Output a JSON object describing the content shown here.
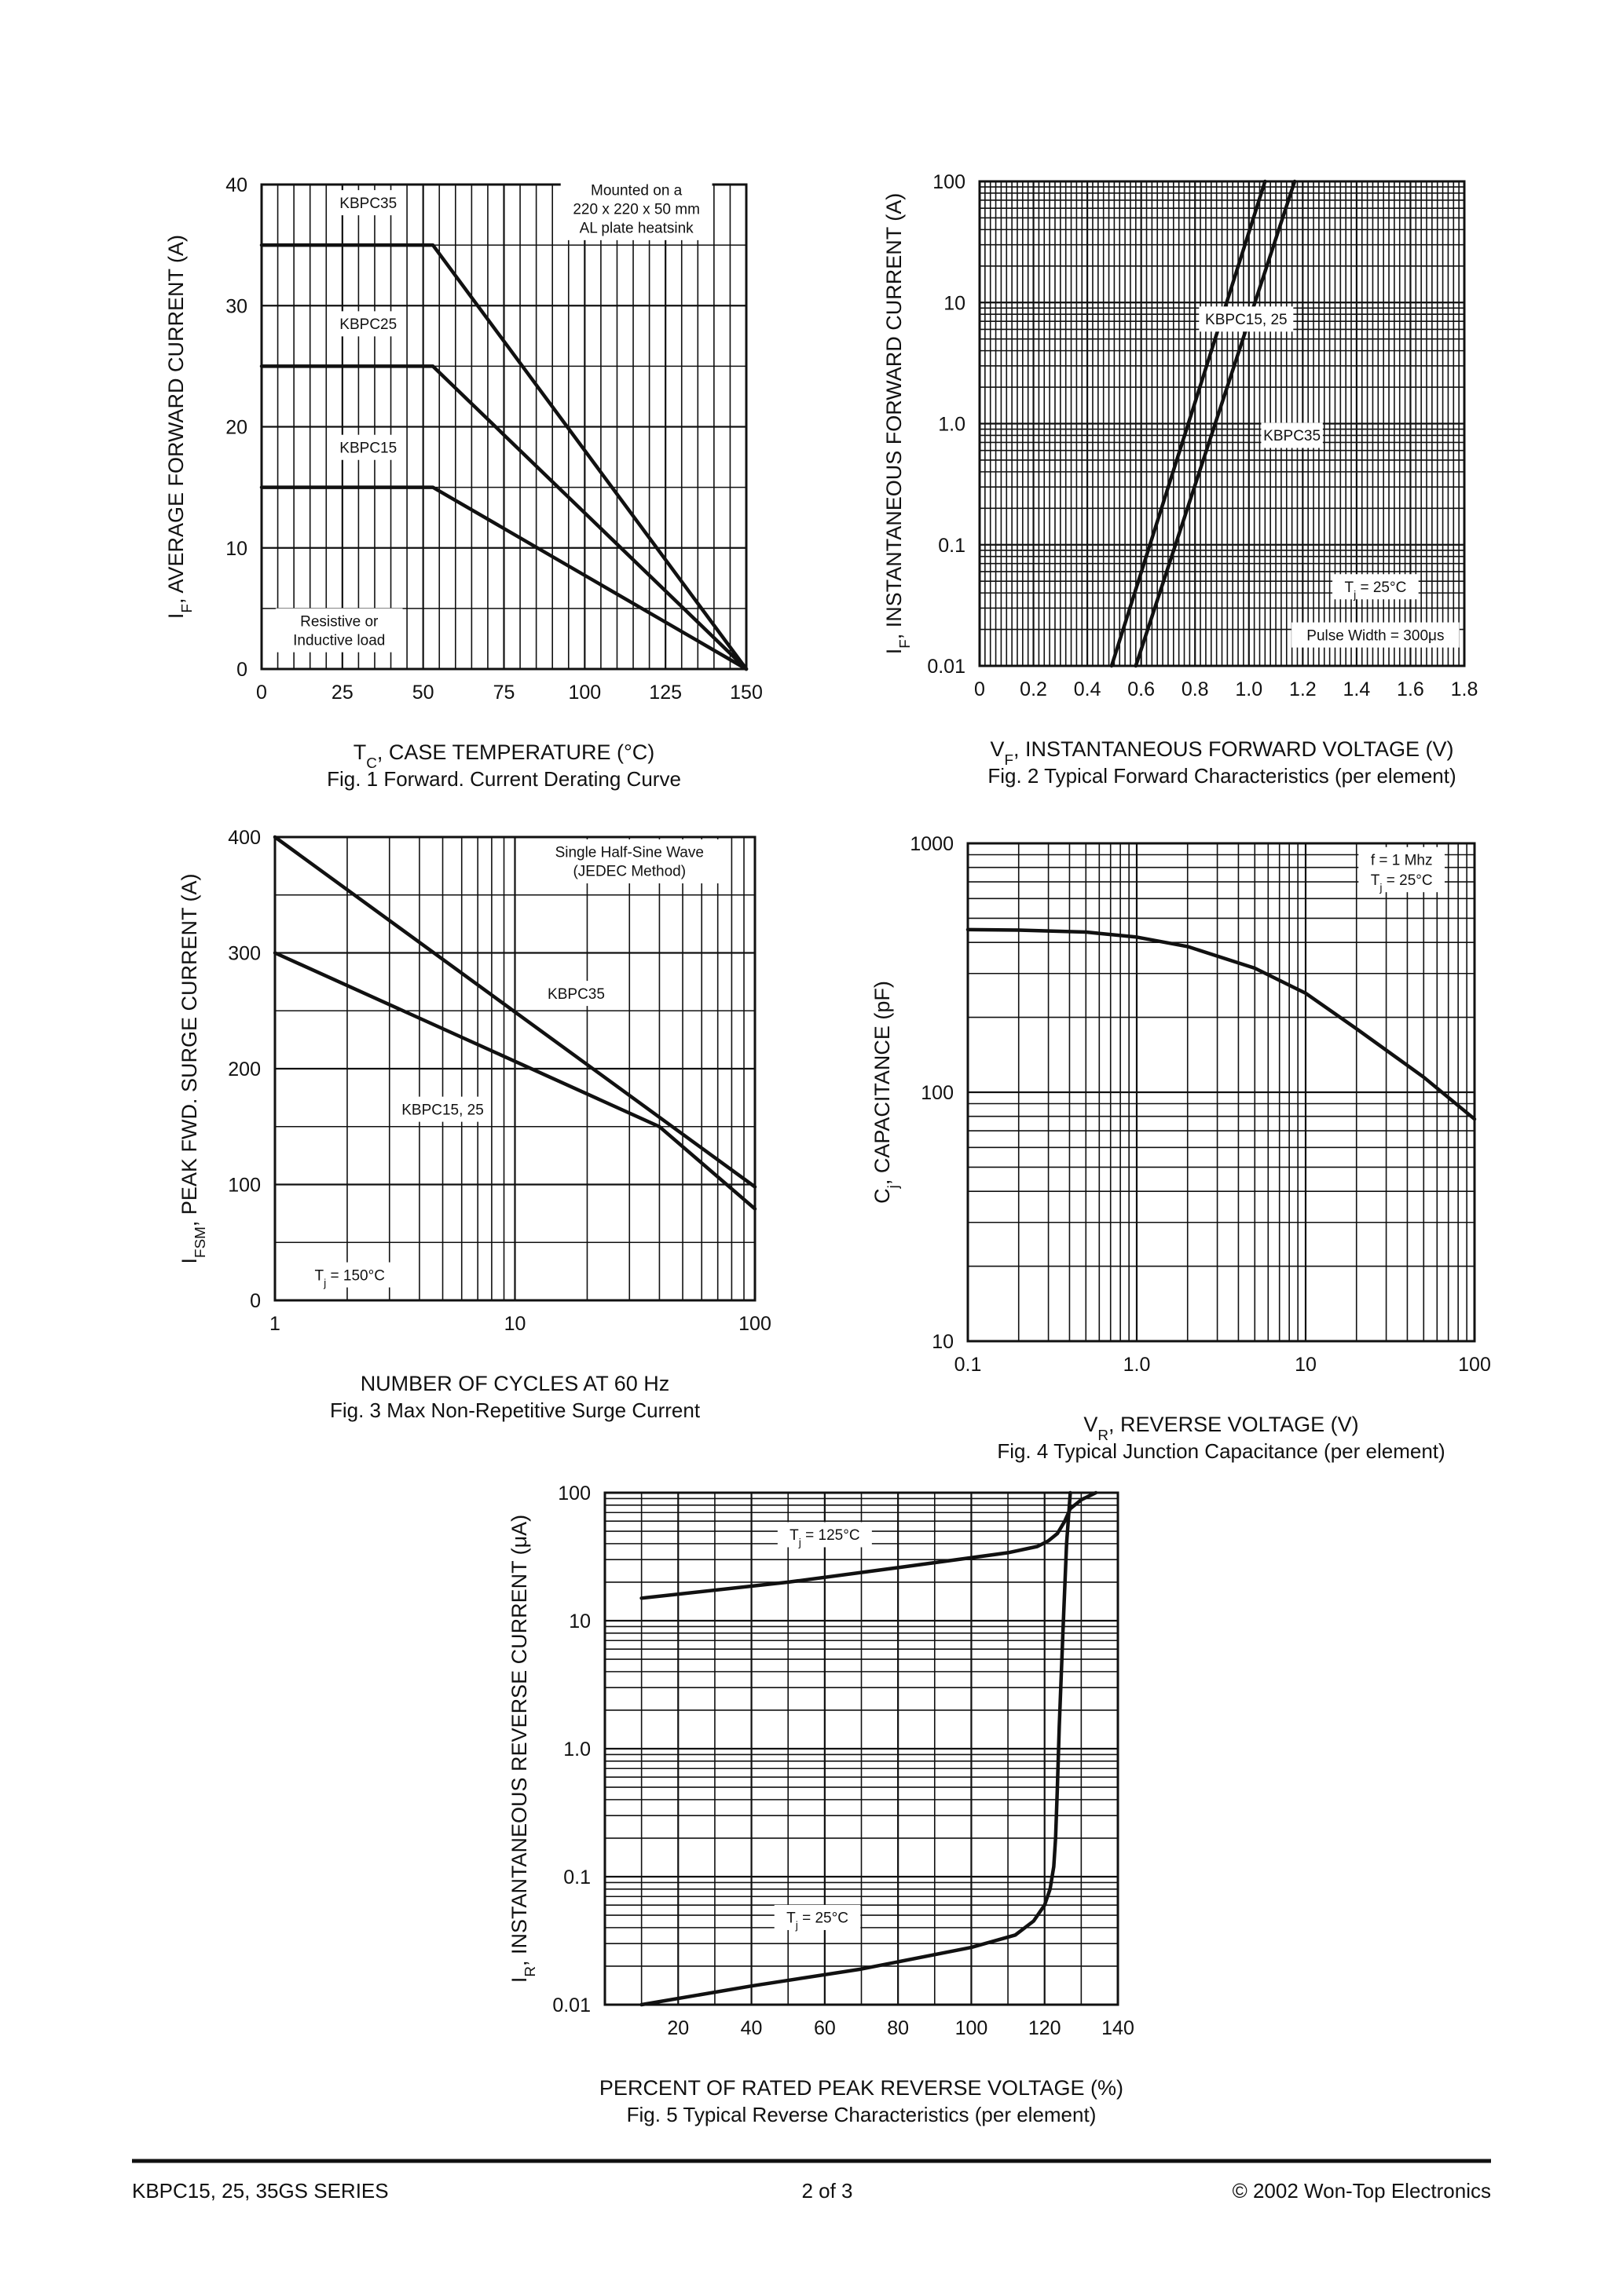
{
  "chart_data": [
    {
      "id": "fig1",
      "type": "line",
      "caption": "Fig. 1  Forward. Current Derating Curve",
      "xlabel": {
        "main": "T",
        "sub": "C",
        "rest": ", CASE TEMPERATURE (°C)"
      },
      "ylabel": {
        "main": "I",
        "sub": "F",
        "rest": ", AVERAGE FORWARD CURRENT (A)"
      },
      "xscale": "linear",
      "yscale": "linear",
      "xlim": [
        0,
        150
      ],
      "ylim": [
        0,
        40
      ],
      "xticks": [
        {
          "v": 0,
          "t": "0"
        },
        {
          "v": 25,
          "t": "25"
        },
        {
          "v": 50,
          "t": "50"
        },
        {
          "v": 75,
          "t": "75"
        },
        {
          "v": 100,
          "t": "100"
        },
        {
          "v": 125,
          "t": "125"
        },
        {
          "v": 150,
          "t": "150"
        }
      ],
      "yticks": [
        {
          "v": 0,
          "t": "0"
        },
        {
          "v": 10,
          "t": "10"
        },
        {
          "v": 20,
          "t": "20"
        },
        {
          "v": 30,
          "t": "30"
        },
        {
          "v": 40,
          "t": "40"
        }
      ],
      "grid": true,
      "series": [
        {
          "name": "KBPC35",
          "x": [
            0,
            53,
            150
          ],
          "y": [
            35,
            35,
            0
          ]
        },
        {
          "name": "KBPC25",
          "x": [
            0,
            53,
            150
          ],
          "y": [
            25,
            25,
            0
          ]
        },
        {
          "name": "KBPC15",
          "x": [
            0,
            53,
            150
          ],
          "y": [
            15,
            15,
            0
          ]
        }
      ],
      "annotations": [
        {
          "lines": [
            "KBPC35"
          ],
          "x": 33,
          "y": 38.5
        },
        {
          "lines": [
            "KBPC25"
          ],
          "x": 33,
          "y": 28.5
        },
        {
          "lines": [
            "KBPC15"
          ],
          "x": 33,
          "y": 18.3
        },
        {
          "lines": [
            "Mounted on a",
            "220 x 220 x 50 mm",
            "AL plate heatsink"
          ],
          "x": 116,
          "y": 38
        },
        {
          "lines": [
            "Resistive or",
            "Inductive load"
          ],
          "x": 24,
          "y": 3.2
        }
      ]
    },
    {
      "id": "fig2",
      "type": "line",
      "caption": "Fig. 2  Typical Forward Characteristics (per element)",
      "xlabel": {
        "main": "V",
        "sub": "F",
        "rest": ", INSTANTANEOUS FORWARD VOLTAGE (V)"
      },
      "ylabel": {
        "main": "I",
        "sub": "F",
        "rest": ", INSTANTANEOUS FORWARD CURRENT (A)"
      },
      "xscale": "linear",
      "yscale": "log",
      "xlim": [
        0,
        1.8
      ],
      "ylim": [
        0.01,
        100
      ],
      "xticks": [
        {
          "v": 0,
          "t": "0"
        },
        {
          "v": 0.2,
          "t": "0.2"
        },
        {
          "v": 0.4,
          "t": "0.4"
        },
        {
          "v": 0.6,
          "t": "0.6"
        },
        {
          "v": 0.8,
          "t": "0.8"
        },
        {
          "v": 1.0,
          "t": "1.0"
        },
        {
          "v": 1.2,
          "t": "1.2"
        },
        {
          "v": 1.4,
          "t": "1.4"
        },
        {
          "v": 1.6,
          "t": "1.6"
        },
        {
          "v": 1.8,
          "t": "1.8"
        }
      ],
      "yticks": [
        {
          "v": 0.01,
          "t": "0.01"
        },
        {
          "v": 0.1,
          "t": "0.1"
        },
        {
          "v": 1,
          "t": "1.0"
        },
        {
          "v": 10,
          "t": "10"
        },
        {
          "v": 100,
          "t": "100"
        }
      ],
      "grid": true,
      "series": [
        {
          "name": "KBPC15, 25",
          "x": [
            0.49,
            1.06
          ],
          "y": [
            0.01,
            100
          ]
        },
        {
          "name": "KBPC35",
          "x": [
            0.58,
            1.17
          ],
          "y": [
            0.01,
            100
          ]
        }
      ],
      "annotations": [
        {
          "lines": [
            "KBPC15, 25"
          ],
          "x": 0.99,
          "y": 7.3
        },
        {
          "lines": [
            "KBPC35"
          ],
          "x": 1.16,
          "y": 0.8
        },
        {
          "lines": [
            "T|j| = 25°C"
          ],
          "x": 1.47,
          "y": 0.045
        },
        {
          "lines": [
            "Pulse Width = 300μs"
          ],
          "x": 1.47,
          "y": 0.018
        }
      ]
    },
    {
      "id": "fig3",
      "type": "line",
      "caption": "Fig. 3  Max Non-Repetitive Surge Current",
      "xlabel": {
        "main": "NUMBER OF CYCLES AT 60 Hz",
        "sub": "",
        "rest": ""
      },
      "ylabel": {
        "main": "I",
        "sub": "FSM",
        "rest": ", PEAK FWD. SURGE CURRENT (A)"
      },
      "xscale": "log",
      "yscale": "linear",
      "xlim": [
        1,
        100
      ],
      "ylim": [
        0,
        400
      ],
      "xticks": [
        {
          "v": 1,
          "t": "1"
        },
        {
          "v": 10,
          "t": "10"
        },
        {
          "v": 100,
          "t": "100"
        }
      ],
      "yticks": [
        {
          "v": 0,
          "t": "0"
        },
        {
          "v": 100,
          "t": "100"
        },
        {
          "v": 200,
          "t": "200"
        },
        {
          "v": 300,
          "t": "300"
        },
        {
          "v": 400,
          "t": "400"
        }
      ],
      "grid": true,
      "series": [
        {
          "name": "KBPC35",
          "x": [
            1,
            100
          ],
          "y": [
            400,
            98
          ]
        },
        {
          "name": "KBPC15, 25",
          "x": [
            1,
            40,
            100
          ],
          "y": [
            300,
            150,
            79
          ]
        }
      ],
      "annotations": [
        {
          "lines": [
            "Single Half-Sine Wave",
            "(JEDEC Method)"
          ],
          "x": 30,
          "y": 379
        },
        {
          "lines": [
            "KBPC35"
          ],
          "x": 18,
          "y": 265
        },
        {
          "lines": [
            "KBPC15, 25"
          ],
          "x": 5,
          "y": 165
        },
        {
          "lines": [
            "T|j| = 150°C"
          ],
          "x": 2.05,
          "y": 22
        }
      ]
    },
    {
      "id": "fig4",
      "type": "line",
      "caption": "Fig. 4  Typical Junction Capacitance (per element)",
      "xlabel": {
        "main": "V",
        "sub": "R",
        "rest": ", REVERSE VOLTAGE (V)"
      },
      "ylabel": {
        "main": "C",
        "sub": "j",
        "rest": ", CAPACITANCE (pF)"
      },
      "xscale": "log",
      "yscale": "log",
      "xlim": [
        0.1,
        100
      ],
      "ylim": [
        10,
        1000
      ],
      "xticks": [
        {
          "v": 0.1,
          "t": "0.1"
        },
        {
          "v": 1,
          "t": "1.0"
        },
        {
          "v": 10,
          "t": "10"
        },
        {
          "v": 100,
          "t": "100"
        }
      ],
      "yticks": [
        {
          "v": 10,
          "t": "10"
        },
        {
          "v": 100,
          "t": "100"
        },
        {
          "v": 1000,
          "t": "1000"
        }
      ],
      "grid": true,
      "series": [
        {
          "name": "",
          "x": [
            0.1,
            0.2,
            0.5,
            1,
            2,
            5,
            10,
            20,
            50,
            100
          ],
          "y": [
            450,
            448,
            440,
            420,
            385,
            315,
            250,
            180,
            115,
            78
          ]
        }
      ],
      "annotations": [
        {
          "lines": [
            "f = 1 Mhz"
          ],
          "x": 37,
          "y": 860
        },
        {
          "lines": [
            "T|j| = 25°C"
          ],
          "x": 37,
          "y": 715
        }
      ]
    },
    {
      "id": "fig5",
      "type": "line",
      "caption": "Fig. 5  Typical Reverse Characteristics (per element)",
      "xlabel": {
        "main": "PERCENT OF RATED PEAK  REVERSE VOLTAGE (%)",
        "sub": "",
        "rest": ""
      },
      "ylabel": {
        "main": "I",
        "sub": "R",
        "rest": ", INSTANTANEOUS REVERSE CURRENT (μA)"
      },
      "xscale": "linear",
      "yscale": "log",
      "xlim": [
        0,
        140
      ],
      "ylim": [
        0.01,
        100
      ],
      "xticks": [
        {
          "v": 20,
          "t": "20"
        },
        {
          "v": 40,
          "t": "40"
        },
        {
          "v": 60,
          "t": "60"
        },
        {
          "v": 80,
          "t": "80"
        },
        {
          "v": 100,
          "t": "100"
        },
        {
          "v": 120,
          "t": "120"
        },
        {
          "v": 140,
          "t": "140"
        }
      ],
      "yticks": [
        {
          "v": 0.01,
          "t": "0.01"
        },
        {
          "v": 0.1,
          "t": "0.1"
        },
        {
          "v": 1,
          "t": "1.0"
        },
        {
          "v": 10,
          "t": "10"
        },
        {
          "v": 100,
          "t": "100"
        }
      ],
      "grid": true,
      "series": [
        {
          "name": "T|j| = 125°C",
          "x": [
            10,
            50,
            80,
            110,
            118,
            121,
            123.5,
            125.5,
            127,
            130,
            134
          ],
          "y": [
            15,
            20,
            26,
            34,
            38,
            42,
            48,
            60,
            75,
            88,
            100
          ]
        },
        {
          "name": "T|j| = 25°C",
          "x": [
            10,
            40,
            70,
            100,
            112,
            117,
            120,
            121.5,
            122.5,
            123,
            123.5,
            124,
            125,
            126,
            127
          ],
          "y": [
            0.01,
            0.014,
            0.019,
            0.028,
            0.035,
            0.045,
            0.06,
            0.08,
            0.12,
            0.2,
            0.5,
            1.5,
            8,
            40,
            100
          ]
        }
      ],
      "annotations": [
        {
          "lines": [
            "T|j| = 125°C"
          ],
          "x": 60,
          "y": 47
        },
        {
          "lines": [
            "T|j| = 25°C"
          ],
          "x": 58,
          "y": 0.048
        }
      ]
    }
  ],
  "footer": {
    "left": "KBPC15, 25, 35GS SERIES",
    "center": "2 of 3",
    "right": "© 2002 Won-Top Electronics"
  }
}
